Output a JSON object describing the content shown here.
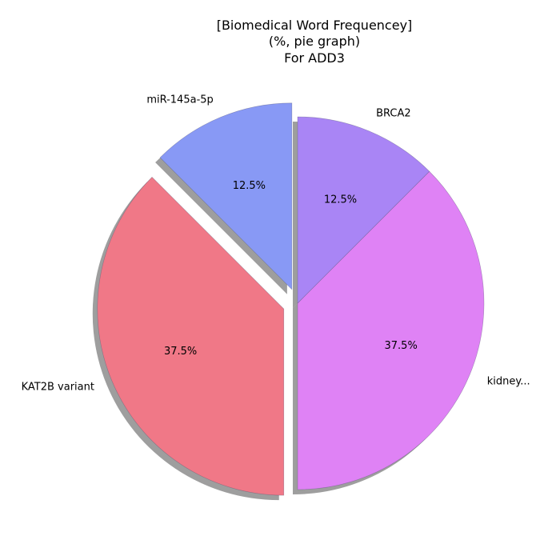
{
  "chart_data": {
    "type": "pie",
    "title_lines": [
      "[Biomedical Word Frequencey]",
      "(%, pie graph)",
      "For ADD3"
    ],
    "slices": [
      {
        "label": "miR-145a-5p",
        "value": 12.5,
        "pct_label": "12.5%",
        "color": "#8899F5",
        "explode": 0.08
      },
      {
        "label": "KAT2B variant",
        "value": 37.5,
        "pct_label": "37.5%",
        "color": "#F07887",
        "explode": 0.08
      },
      {
        "label": "kidney...",
        "value": 37.5,
        "pct_label": "37.5%",
        "color": "#DF82F5",
        "explode": 0.0
      },
      {
        "label": "BRCA2",
        "value": 12.5,
        "pct_label": "12.5%",
        "color": "#A985F5",
        "explode": 0.0
      }
    ],
    "start_angle_deg": 90,
    "direction": "counterclockwise",
    "shadow": true,
    "legend": "none"
  }
}
